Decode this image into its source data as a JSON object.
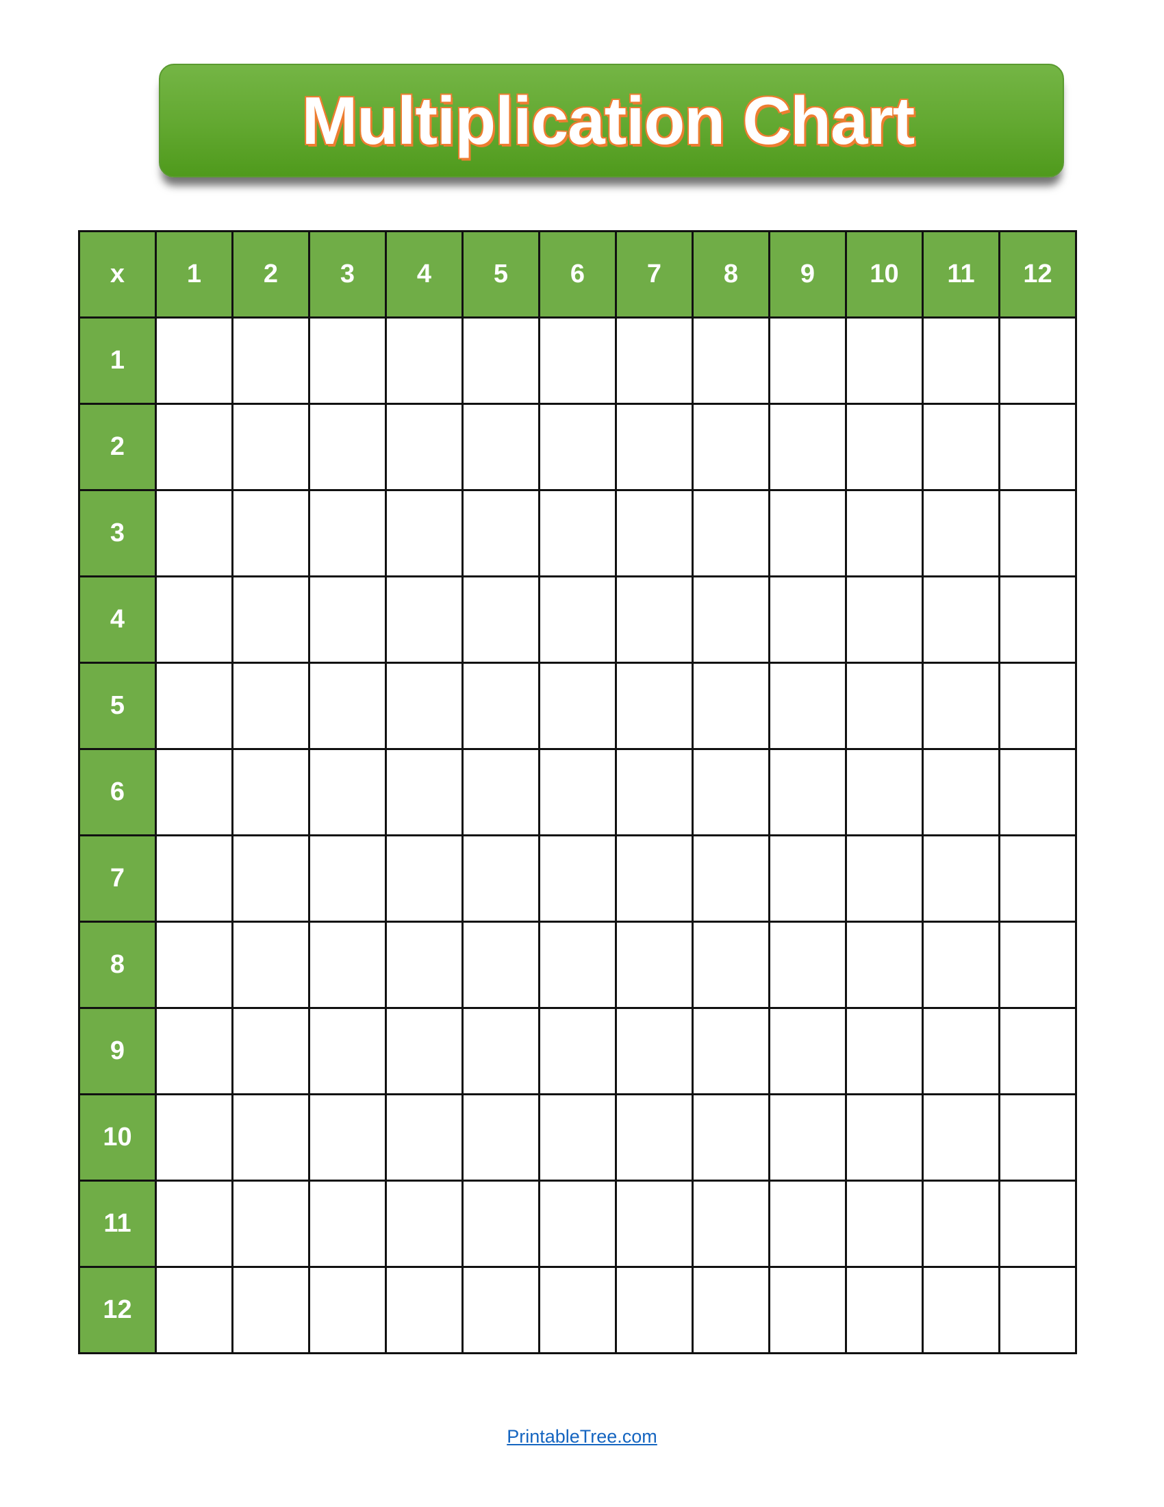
{
  "title": "Multiplication Chart",
  "table": {
    "corner": "x",
    "column_headers": [
      "1",
      "2",
      "3",
      "4",
      "5",
      "6",
      "7",
      "8",
      "9",
      "10",
      "11",
      "12"
    ],
    "row_headers": [
      "1",
      "2",
      "3",
      "4",
      "5",
      "6",
      "7",
      "8",
      "9",
      "10",
      "11",
      "12"
    ],
    "header_color": "#70ad47"
  },
  "footer": {
    "link_text": "PrintableTree.com"
  },
  "colors": {
    "banner": "#62a830",
    "title_outline": "#ed7d31",
    "link": "#1565c0"
  }
}
